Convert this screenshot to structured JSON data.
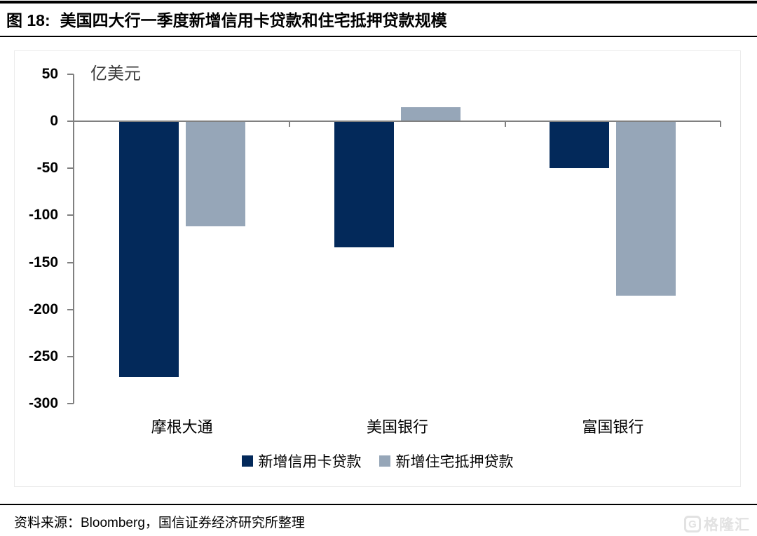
{
  "header": {
    "figure_label": "图 18:",
    "title": "美国四大行一季度新增信用卡贷款和住宅抵押贷款规模"
  },
  "chart_data": {
    "type": "bar",
    "title": "美国四大行一季度新增信用卡贷款和住宅抵押贷款规模",
    "unit_label": "亿美元",
    "categories": [
      "摩根大通",
      "美国银行",
      "富国银行"
    ],
    "series": [
      {
        "name": "新增信用卡贷款",
        "color": "#03295A",
        "values": [
          -272,
          -134,
          -50
        ]
      },
      {
        "name": "新增住宅抵押贷款",
        "color": "#96A6B8",
        "values": [
          -112,
          15,
          -185
        ]
      }
    ],
    "ylabel": "亿美元",
    "ylim": [
      -300,
      50
    ],
    "yticks": [
      50,
      0,
      -50,
      -100,
      -150,
      -200,
      -250,
      -300
    ],
    "grid": false,
    "legend_position": "bottom",
    "axis_color": "#808080"
  },
  "footer": {
    "source": "资料来源：Bloomberg，国信证券经济研究所整理"
  },
  "watermark": {
    "icon": "gelonghui-logo",
    "logo_letter": "G",
    "text": "格隆汇",
    "color": "#e2e2e2"
  }
}
